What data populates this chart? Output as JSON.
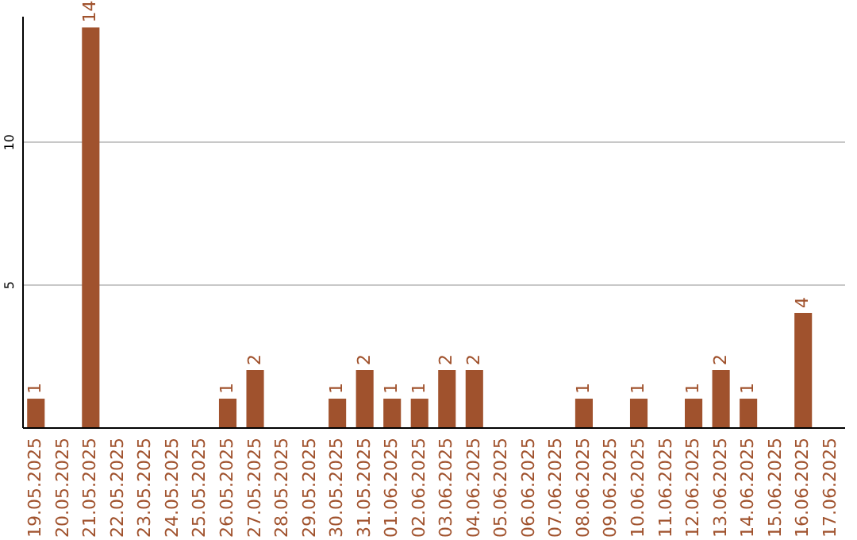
{
  "chart_data": {
    "type": "bar",
    "categories": [
      "19.05.2025",
      "20.05.2025",
      "21.05.2025",
      "22.05.2025",
      "23.05.2025",
      "24.05.2025",
      "25.05.2025",
      "26.05.2025",
      "27.05.2025",
      "28.05.2025",
      "29.05.2025",
      "30.05.2025",
      "31.05.2025",
      "01.06.2025",
      "02.06.2025",
      "03.06.2025",
      "04.06.2025",
      "05.06.2025",
      "06.06.2025",
      "07.06.2025",
      "08.06.2025",
      "09.06.2025",
      "10.06.2025",
      "11.06.2025",
      "12.06.2025",
      "13.06.2025",
      "14.06.2025",
      "15.06.2025",
      "16.06.2025",
      "17.06.2025"
    ],
    "values": [
      1,
      null,
      14,
      null,
      null,
      null,
      null,
      1,
      2,
      null,
      null,
      1,
      2,
      1,
      1,
      2,
      2,
      null,
      null,
      null,
      1,
      null,
      1,
      null,
      1,
      2,
      1,
      null,
      4,
      null
    ],
    "color": "#a0522d",
    "ylim": [
      0,
      14.4
    ],
    "yticks": [
      5,
      10
    ],
    "grid": "y",
    "data_labels": true
  }
}
